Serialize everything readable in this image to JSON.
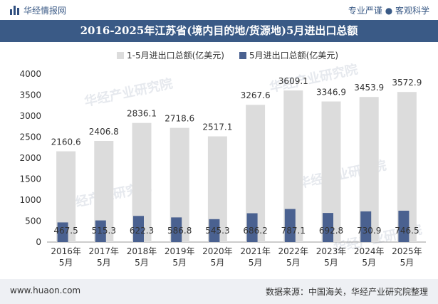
{
  "header": {
    "brand": "华经情报网",
    "tagline": "专业严谨 ● 客观科学"
  },
  "title": "2016-2025年江苏省(境内目的地/货源地)5月进出口总额",
  "footer": {
    "website": "www.huaon.com",
    "source": "数据来源：中国海关，华经产业研究院整理"
  },
  "watermark": "华经产业研究院",
  "colors": {
    "series_total": "#dcdcdc",
    "series_may": "#4a6190",
    "title_bg": "#3a5a86"
  },
  "chart_data": {
    "type": "bar",
    "categories": [
      "2016年\n5月",
      "2017年\n5月",
      "2018年\n5月",
      "2019年\n5月",
      "2020年\n5月",
      "2021年\n5月",
      "2022年\n5月",
      "2023年\n5月",
      "2024年\n5月",
      "2025年\n5月"
    ],
    "series": [
      {
        "name": "1-5月进出口总额(亿美元)",
        "values": [
          2160.6,
          2406.8,
          2836.1,
          2718.6,
          2517.1,
          3267.6,
          3609.1,
          3346.9,
          3453.9,
          3572.9
        ]
      },
      {
        "name": "5月进出口总额(亿美元)",
        "values": [
          467.5,
          515.3,
          622.3,
          586.8,
          545.3,
          686.2,
          787.1,
          692.8,
          730.9,
          746.5
        ]
      }
    ],
    "ylim": [
      0,
      4000
    ],
    "yticks": [
      0,
      500,
      1000,
      1500,
      2000,
      2500,
      3000,
      3500,
      4000
    ],
    "legend": "top-center",
    "grid": false
  }
}
